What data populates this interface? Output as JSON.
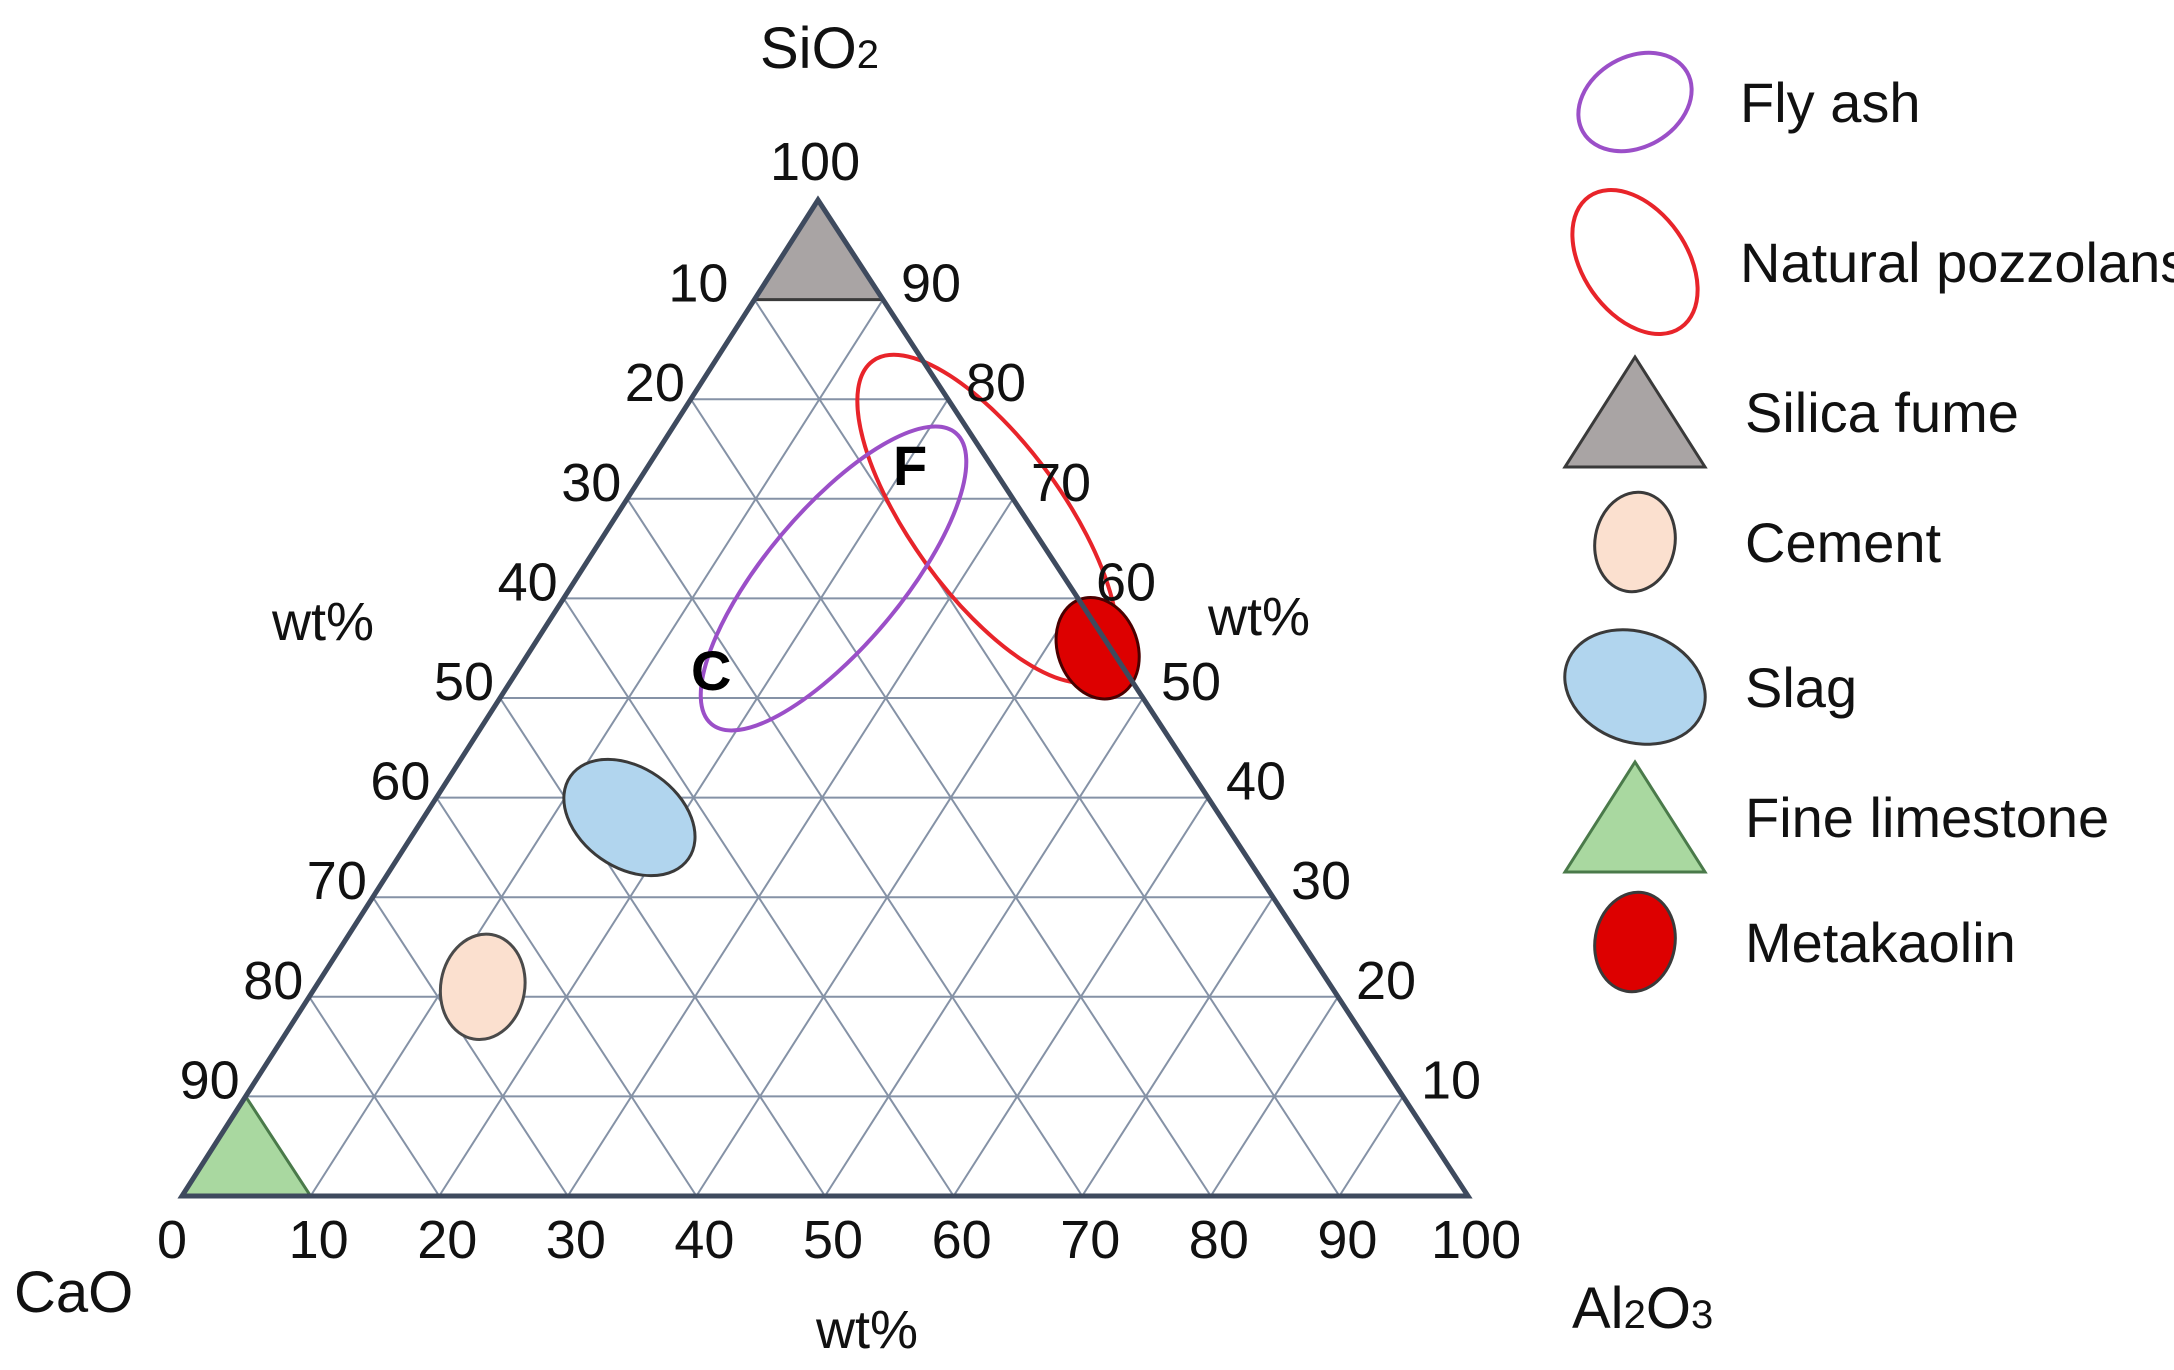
{
  "chart_data": {
    "type": "ternary",
    "title": "",
    "axes": {
      "top": {
        "label": "SiO",
        "subscript": "2",
        "label_suffix": ""
      },
      "left_bottom": {
        "label": "CaO"
      },
      "right_bottom": {
        "label": "Al",
        "subscript": "2",
        "label_suffix": "O",
        "subscript2": "3"
      },
      "unit": "wt%",
      "range": [
        0,
        100
      ],
      "grid_step": 10
    },
    "tick_labels": {
      "top": "100",
      "left": [
        "10",
        "20",
        "30",
        "40",
        "50",
        "60",
        "70",
        "80",
        "90"
      ],
      "right": [
        "90",
        "80",
        "70",
        "60",
        "50",
        "40",
        "30",
        "20",
        "10"
      ],
      "bottom": [
        "0",
        "10",
        "20",
        "30",
        "40",
        "50",
        "60",
        "70",
        "80",
        "90",
        "100"
      ]
    },
    "unit_labels": {
      "left": "wt%",
      "right": "wt%",
      "bottom": "wt%"
    },
    "regions": [
      {
        "name": "Fly ash",
        "shape": "ellipse",
        "stroke": "#9b4fc8",
        "fill": "none",
        "center": {
          "SiO2": 62,
          "CaO": 18,
          "Al2O3": 20
        },
        "labels": [
          "F",
          "C"
        ]
      },
      {
        "name": "Natural pozzolans",
        "shape": "ellipse",
        "stroke": "#e8242a",
        "fill": "none",
        "center": {
          "SiO2": 68,
          "CaO": 3,
          "Al2O3": 29
        }
      },
      {
        "name": "Silica fume",
        "shape": "triangle",
        "stroke": "#3a3a3a",
        "fill": "#a9a4a4",
        "range": {
          "SiO2": [
            90,
            100
          ]
        }
      },
      {
        "name": "Cement",
        "shape": "ellipse",
        "stroke": "#4a4a4a",
        "fill": "#fbe0cf",
        "center": {
          "SiO2": 21,
          "CaO": 66,
          "Al2O3": 13
        }
      },
      {
        "name": "Slag",
        "shape": "ellipse",
        "stroke": "#3a3a3a",
        "fill": "#b1d5ee",
        "center": {
          "SiO2": 38,
          "CaO": 46,
          "Al2O3": 16
        }
      },
      {
        "name": "Fine limestone",
        "shape": "triangle",
        "stroke": "#4a7a4a",
        "fill": "#a9d8a0",
        "range": {
          "CaO": [
            90,
            100
          ]
        }
      },
      {
        "name": "Metakaolin",
        "shape": "ellipse",
        "stroke": "#4a0000",
        "fill": "#dd0000",
        "center": {
          "SiO2": 55,
          "CaO": 1,
          "Al2O3": 44
        }
      }
    ],
    "legend": {
      "position": "right",
      "items": [
        {
          "label": "Fly ash",
          "symbol": "ellipse-outline",
          "color": "#9b4fc8"
        },
        {
          "label": "Natural  pozzolans",
          "symbol": "ellipse-outline",
          "color": "#e8242a"
        },
        {
          "label": "Silica fume",
          "symbol": "triangle",
          "color": "#a9a4a4"
        },
        {
          "label": "Cement",
          "symbol": "ellipse",
          "color": "#fbe0cf"
        },
        {
          "label": "Slag",
          "symbol": "ellipse",
          "color": "#b1d5ee"
        },
        {
          "label": "Fine limestone",
          "symbol": "triangle",
          "color": "#a9d8a0"
        },
        {
          "label": "Metakaolin",
          "symbol": "ellipse",
          "color": "#dd0000"
        }
      ]
    },
    "colors": {
      "frame": "#3e4a5e",
      "grid": "#8592a6"
    }
  }
}
